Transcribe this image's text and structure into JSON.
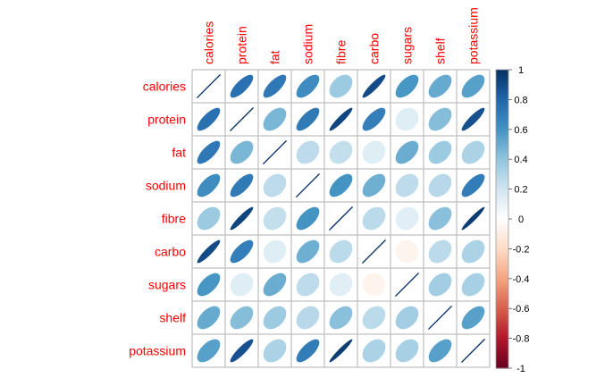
{
  "chart_data": {
    "type": "heatmap",
    "method": "ellipse",
    "variables": [
      "calories",
      "protein",
      "fat",
      "sodium",
      "fibre",
      "carbo",
      "sugars",
      "shelf",
      "potassium"
    ],
    "matrix": [
      [
        1.0,
        0.75,
        0.72,
        0.63,
        0.37,
        0.9,
        0.59,
        0.51,
        0.55
      ],
      [
        0.75,
        1.0,
        0.46,
        0.71,
        0.92,
        0.69,
        0.14,
        0.43,
        0.88
      ],
      [
        0.72,
        0.46,
        1.0,
        0.26,
        0.24,
        0.14,
        0.5,
        0.37,
        0.32
      ],
      [
        0.63,
        0.71,
        0.26,
        1.0,
        0.6,
        0.49,
        0.26,
        0.28,
        0.7
      ],
      [
        0.37,
        0.92,
        0.24,
        0.6,
        1.0,
        0.27,
        0.13,
        0.42,
        0.95
      ],
      [
        0.9,
        0.69,
        0.14,
        0.49,
        0.27,
        1.0,
        -0.06,
        0.27,
        0.32
      ],
      [
        0.59,
        0.14,
        0.5,
        0.26,
        0.13,
        -0.06,
        1.0,
        0.35,
        0.33
      ],
      [
        0.51,
        0.43,
        0.37,
        0.28,
        0.42,
        0.27,
        0.35,
        1.0,
        0.55
      ],
      [
        0.55,
        0.88,
        0.32,
        0.7,
        0.95,
        0.32,
        0.33,
        0.55,
        1.0
      ]
    ],
    "colorbar": {
      "ticks": [
        "1",
        "0.8",
        "0.6",
        "0.4",
        "0.2",
        "0",
        "-0.2",
        "-0.4",
        "-0.6",
        "-0.8",
        "-1"
      ],
      "range": [
        -1,
        1
      ]
    },
    "label_color": "#ff0000",
    "palette": [
      "#67001f",
      "#b2182b",
      "#d6604d",
      "#f4a582",
      "#fddbc7",
      "#ffffff",
      "#d1e5f0",
      "#92c5de",
      "#4393c3",
      "#2166ac",
      "#053061"
    ]
  }
}
